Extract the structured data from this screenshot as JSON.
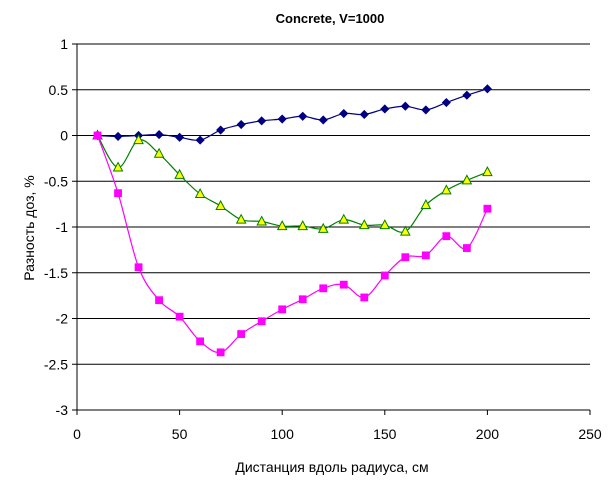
{
  "chart_data": {
    "type": "line",
    "title": "Concrete, V=1000",
    "xlabel": "Дистанция вдоль радиуса, см",
    "ylabel": "Разность доз, %",
    "xlim": [
      0,
      250
    ],
    "ylim": [
      -3,
      1
    ],
    "x_ticks": [
      0,
      50,
      100,
      150,
      200,
      250
    ],
    "y_ticks": [
      1,
      0.5,
      0,
      -0.5,
      -1,
      -1.5,
      -2,
      -2.5,
      -3
    ],
    "grid": "horizontal",
    "legend": "none",
    "series": [
      {
        "color": "#000080",
        "marker": "diamond",
        "x": [
          10,
          20,
          30,
          40,
          50,
          60,
          70,
          80,
          90,
          100,
          110,
          120,
          130,
          140,
          150,
          160,
          170,
          180,
          190,
          200
        ],
        "y": [
          0.0,
          -0.01,
          0.0,
          0.01,
          -0.02,
          -0.05,
          0.06,
          0.12,
          0.16,
          0.18,
          0.21,
          0.17,
          0.24,
          0.23,
          0.29,
          0.32,
          0.28,
          0.36,
          0.44,
          0.51
        ]
      },
      {
        "color": "#008000",
        "marker_fill": "#ffff00",
        "marker": "triangle",
        "x": [
          10,
          20,
          30,
          40,
          50,
          60,
          70,
          80,
          90,
          100,
          110,
          120,
          130,
          140,
          150,
          160,
          170,
          180,
          190,
          200
        ],
        "y": [
          0.0,
          -0.35,
          -0.05,
          -0.2,
          -0.43,
          -0.64,
          -0.77,
          -0.92,
          -0.94,
          -0.99,
          -0.99,
          -1.02,
          -0.92,
          -0.98,
          -0.98,
          -1.05,
          -0.76,
          -0.6,
          -0.49,
          -0.4
        ]
      },
      {
        "color": "#ff00ff",
        "marker": "square",
        "x": [
          10,
          20,
          30,
          40,
          50,
          60,
          70,
          80,
          90,
          100,
          110,
          120,
          130,
          140,
          150,
          160,
          170,
          180,
          190,
          200
        ],
        "y": [
          0.0,
          -0.63,
          -1.44,
          -1.8,
          -1.98,
          -2.25,
          -2.37,
          -2.17,
          -2.03,
          -1.9,
          -1.79,
          -1.67,
          -1.63,
          -1.77,
          -1.53,
          -1.33,
          -1.31,
          -1.1,
          -1.23,
          -0.8
        ]
      }
    ]
  }
}
